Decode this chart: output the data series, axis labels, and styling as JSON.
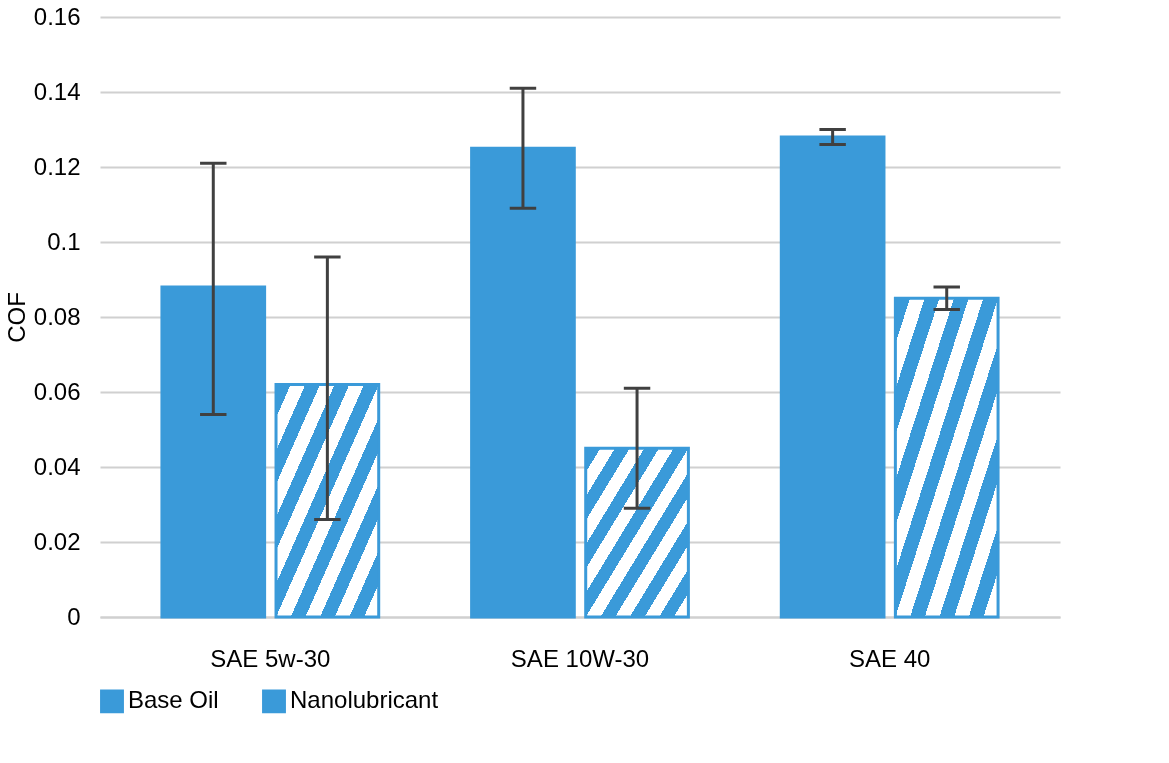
{
  "chart_data": {
    "type": "bar",
    "ylabel": "COF",
    "categories": [
      "SAE 5w-30",
      "SAE 10W-30",
      "SAE 40"
    ],
    "series": [
      {
        "name": "Base Oil",
        "color": "#3a9ad9",
        "values": [
          0.088,
          0.125,
          0.128
        ],
        "errors": [
          [
            0.054,
            0.121
          ],
          [
            0.109,
            0.141
          ],
          [
            0.126,
            0.13
          ]
        ]
      },
      {
        "name": "Nanolubricant",
        "color": "#3a9ad9",
        "values": [
          0.062,
          0.045,
          0.085
        ],
        "errors": [
          [
            0.026,
            0.096
          ],
          [
            0.029,
            0.061
          ],
          [
            0.082,
            0.088
          ]
        ]
      }
    ],
    "ylim": [
      0,
      0.16
    ],
    "yticks": [
      0,
      0.02,
      0.04,
      0.06,
      0.08,
      0.1,
      0.12,
      0.14,
      0.16
    ],
    "grid": "y",
    "legend": "bottom"
  }
}
